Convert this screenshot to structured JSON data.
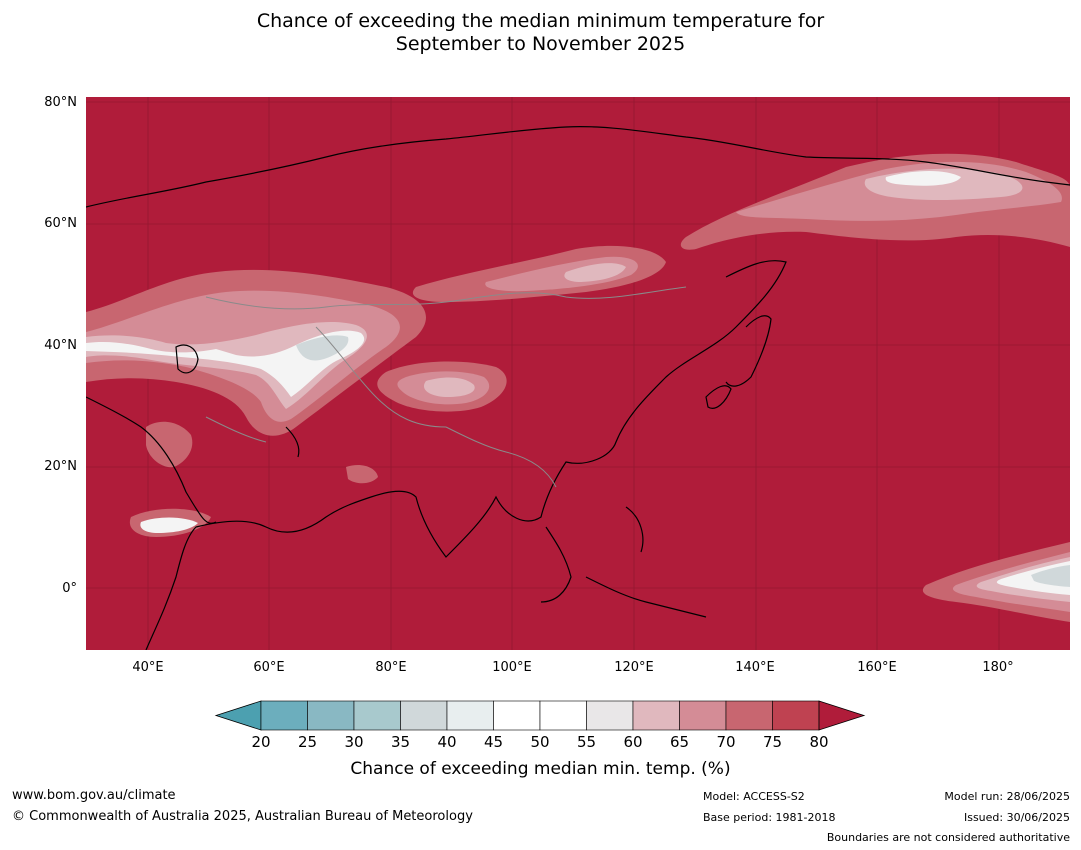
{
  "title_line1": "Chance of exceeding the median minimum temperature for",
  "title_line2": "September to November 2025",
  "lat_labels": [
    "80°N",
    "60°N",
    "40°N",
    "20°N",
    "0°"
  ],
  "lon_labels": [
    "40°E",
    "60°E",
    "80°E",
    "100°E",
    "120°E",
    "140°E",
    "160°E",
    "180°"
  ],
  "colorbar": {
    "ticks": [
      "20",
      "25",
      "30",
      "35",
      "40",
      "45",
      "50",
      "55",
      "60",
      "65",
      "70",
      "75",
      "80"
    ],
    "colors": [
      "#6caebd",
      "#89b8c3",
      "#a8c9cd",
      "#d0d8da",
      "#e8eeef",
      "#ffffff",
      "#ffffff",
      "#e9e7e8",
      "#e0b8be",
      "#d48c96",
      "#c86670",
      "#bf4251"
    ],
    "under_color": "#4ca0b0",
    "over_color": "#b01c3a",
    "label": "Chance of exceeding median min. temp. (%)"
  },
  "map_colors": {
    "background": "#b01c3a",
    "p70": "#c86670",
    "p65": "#d48c96",
    "p60": "#e0b8be",
    "p50": "#f4f4f4",
    "p40": "#d0d8da"
  },
  "footer": {
    "website": "www.bom.gov.au/climate",
    "copyright": "© Commonwealth of Australia 2025, Australian Bureau of Meteorology",
    "model": "Model: ACCESS-S2",
    "base_period": "Base period: 1981-2018",
    "model_run": "Model run: 28/06/2025",
    "issued": "Issued: 30/06/2025",
    "boundaries": "Boundaries are not considered authoritative"
  }
}
